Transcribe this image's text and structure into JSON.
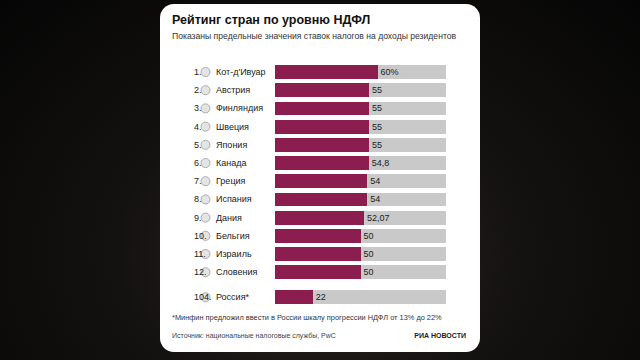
{
  "chart_data": {
    "type": "bar",
    "orientation": "horizontal",
    "title": "Рейтинг стран по уровню НДФЛ",
    "subtitle": "Показаны предельные значения ставок налогов на доходы резидентов",
    "ranks": [
      "1.",
      "2.",
      "3.",
      "4.",
      "5.",
      "6.",
      "7.",
      "8.",
      "9.",
      "10.",
      "11.",
      "12.",
      "104."
    ],
    "categories": [
      "Кот-д'Ивуар",
      "Австрия",
      "Финляндия",
      "Швеция",
      "Япония",
      "Канада",
      "Греция",
      "Испания",
      "Дания",
      "Бельгия",
      "Израиль",
      "Словения",
      "Россия*"
    ],
    "values": [
      60,
      55,
      55,
      55,
      55,
      54.8,
      54,
      54,
      52.07,
      50,
      50,
      50,
      22
    ],
    "value_labels": [
      "60%",
      "55",
      "55",
      "55",
      "55",
      "54,8",
      "54",
      "54",
      "52,07",
      "50",
      "50",
      "50",
      "22"
    ],
    "color": "#8b1e4f",
    "xlim": [
      0,
      100
    ],
    "tick_labels": false,
    "data_labels": true,
    "note": "*Минфин предложил ввести в России шкалу прогрессии НДФЛ от 13% до 22%",
    "source": "Источник: национальные налоговые службы, PwC",
    "logo": "РИА НОВОСТИ"
  }
}
